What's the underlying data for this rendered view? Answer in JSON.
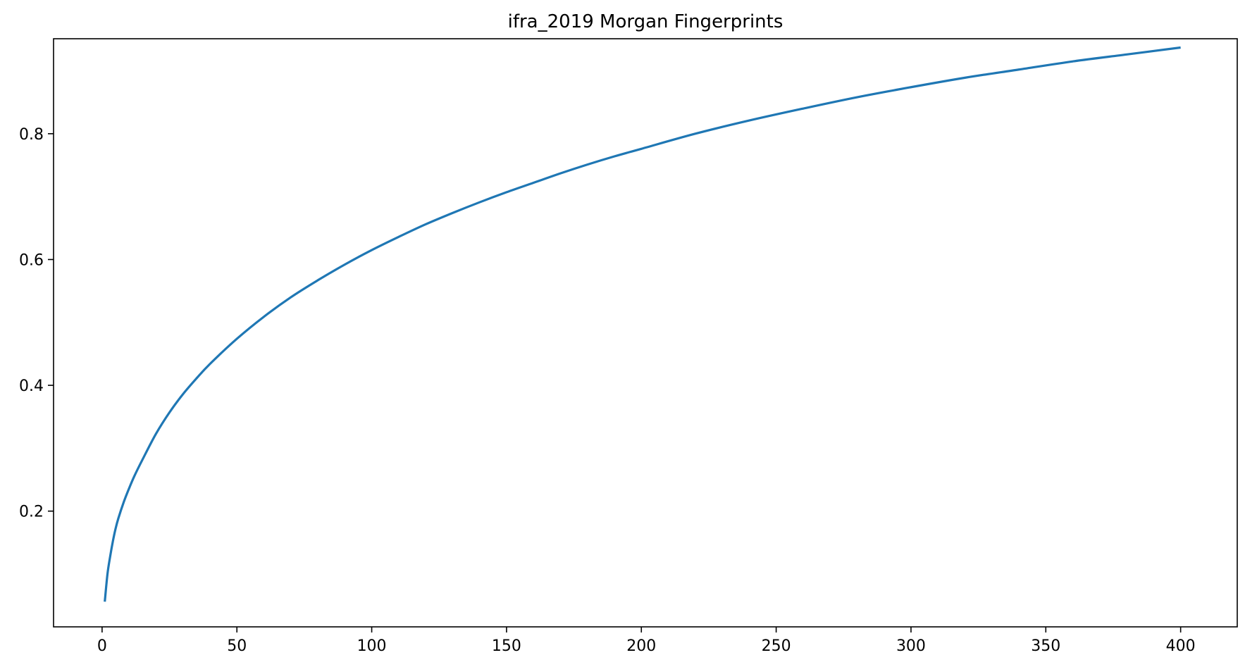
{
  "chart_data": {
    "type": "line",
    "title": "ifra_2019 Morgan Fingerprints",
    "xlabel": "",
    "ylabel": "",
    "xlim": [
      -18,
      421
    ],
    "ylim": [
      0.016,
      0.951
    ],
    "grid": false,
    "x_ticks": [
      0,
      50,
      100,
      150,
      200,
      250,
      300,
      350,
      400
    ],
    "x_tick_labels": [
      "0",
      "50",
      "100",
      "150",
      "200",
      "250",
      "300",
      "350",
      "400"
    ],
    "y_ticks": [
      0.2,
      0.4,
      0.6,
      0.8
    ],
    "y_tick_labels": [
      "0.2",
      "0.4",
      "0.6",
      "0.8"
    ],
    "series": [
      {
        "color": "#1f77b4",
        "x": [
          1,
          2,
          3,
          4,
          5,
          6,
          8,
          10,
          12,
          15,
          20,
          25,
          30,
          35,
          40,
          50,
          60,
          70,
          80,
          90,
          100,
          110,
          120,
          130,
          140,
          150,
          160,
          170,
          180,
          190,
          200,
          220,
          240,
          260,
          280,
          300,
          320,
          340,
          360,
          380,
          400
        ],
        "y": [
          0.056,
          0.1,
          0.128,
          0.152,
          0.172,
          0.188,
          0.214,
          0.236,
          0.256,
          0.282,
          0.323,
          0.357,
          0.386,
          0.411,
          0.434,
          0.474,
          0.509,
          0.54,
          0.567,
          0.592,
          0.615,
          0.636,
          0.656,
          0.674,
          0.691,
          0.707,
          0.722,
          0.737,
          0.751,
          0.764,
          0.776,
          0.8,
          0.821,
          0.84,
          0.858,
          0.874,
          0.889,
          0.902,
          0.915,
          0.926,
          0.937
        ]
      }
    ]
  }
}
